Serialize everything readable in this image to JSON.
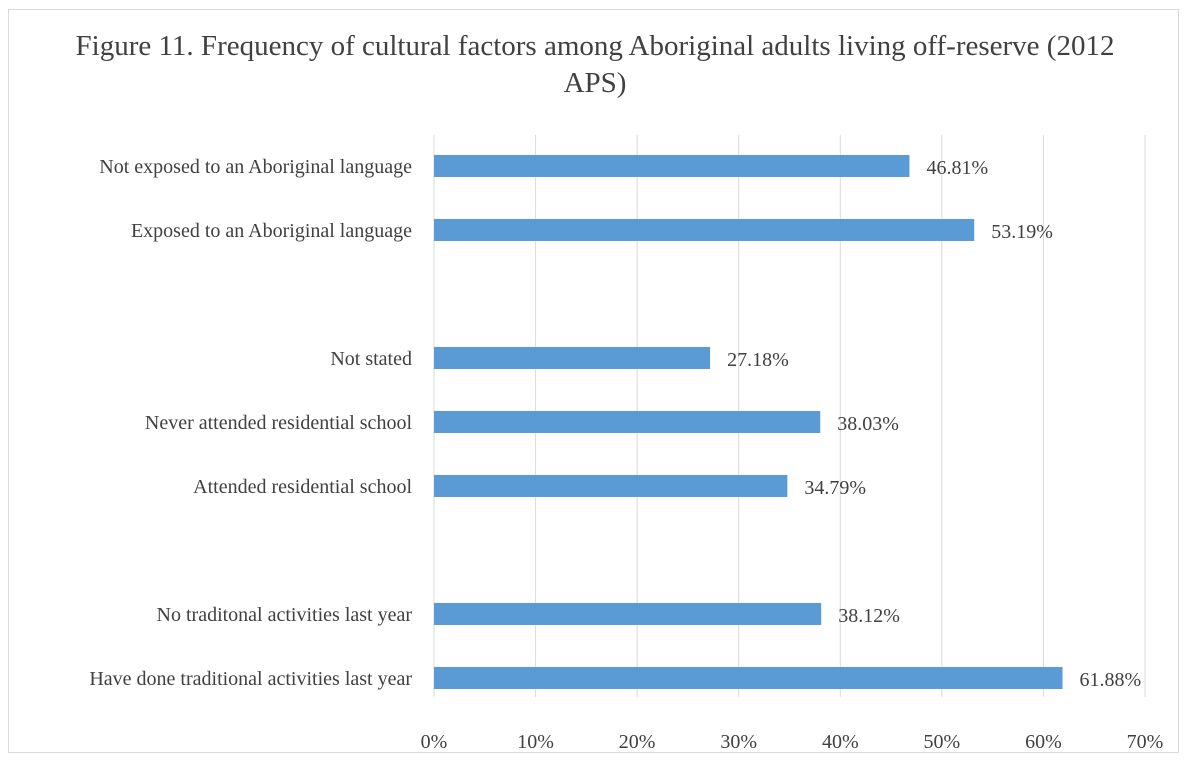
{
  "chart_data": {
    "type": "bar",
    "orientation": "horizontal",
    "title": "Figure 11. Frequency of cultural factors among Aboriginal adults living off-reserve (2012 APS)",
    "categories": [
      "Not exposed to an Aboriginal language",
      "Exposed to an Aboriginal language",
      "",
      "Not stated",
      "Never attended residential school",
      "Attended residential school",
      "",
      "No traditonal activities last year",
      "Have done traditional activities last year"
    ],
    "values": [
      46.81,
      53.19,
      null,
      27.18,
      38.03,
      34.79,
      null,
      38.12,
      61.88
    ],
    "data_labels": [
      "46.81%",
      "53.19%",
      "",
      "27.18%",
      "38.03%",
      "34.79%",
      "",
      "38.12%",
      "61.88%"
    ],
    "xlim": [
      0,
      70
    ],
    "x_ticks": [
      0,
      10,
      20,
      30,
      40,
      50,
      60,
      70
    ],
    "x_tick_labels": [
      "0%",
      "10%",
      "20%",
      "30%",
      "40%",
      "50%",
      "60%",
      "70%"
    ],
    "grid": true,
    "legend": "none",
    "bar_color": "#5b9bd5",
    "grid_color": "#d9d9d9",
    "text_color": "#404040"
  }
}
